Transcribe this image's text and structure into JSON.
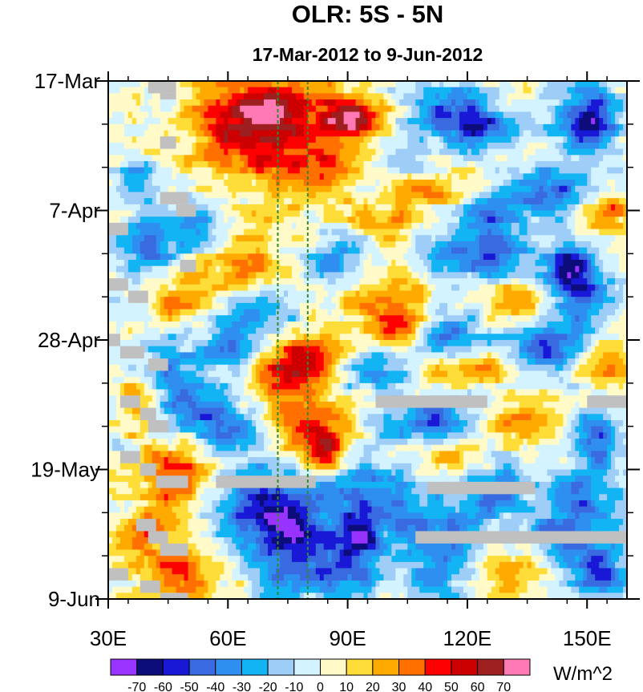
{
  "chart_data": {
    "type": "heatmap",
    "title": "OLR: 5S - 5N",
    "subtitle": "17-Mar-2012 to 9-Jun-2012",
    "xlabel": "",
    "ylabel": "",
    "x_range": [
      30,
      160
    ],
    "x_ticks": [
      {
        "value": 30,
        "label": "30E"
      },
      {
        "value": 60,
        "label": "60E"
      },
      {
        "value": 90,
        "label": "90E"
      },
      {
        "value": 120,
        "label": "120E"
      },
      {
        "value": 150,
        "label": "150E"
      }
    ],
    "y_range_days": [
      0,
      84
    ],
    "y_axis_direction": "time increases downward",
    "y_ticks": [
      {
        "value": 0,
        "label": "17-Mar"
      },
      {
        "value": 21,
        "label": "7-Apr"
      },
      {
        "value": 42,
        "label": "28-Apr"
      },
      {
        "value": 63,
        "label": "19-May"
      },
      {
        "value": 84,
        "label": "9-Jun"
      }
    ],
    "reference_lines_lon": [
      72.5,
      80
    ],
    "reference_line_color": "#2e8b2e",
    "colorbar": {
      "unit": "W/m^2",
      "levels": [
        -70,
        -60,
        -50,
        -40,
        -30,
        -20,
        -10,
        0,
        10,
        20,
        30,
        40,
        50,
        60,
        70
      ],
      "labels": [
        "-70",
        "-60",
        "-50",
        "-40",
        "-30",
        "-20",
        "-10",
        "0",
        "10",
        "20",
        "30",
        "40",
        "50",
        "60",
        "70"
      ],
      "colors": [
        "#9933ff",
        "#0c0c7a",
        "#1818d6",
        "#3a6ae0",
        "#2f8ff0",
        "#12b4f4",
        "#9ecdf7",
        "#d2f3ff",
        "#fffac8",
        "#ffdd38",
        "#ffaa00",
        "#ff7000",
        "#ff0000",
        "#cc0000",
        "#9e1f20",
        "#ff7ab4"
      ]
    },
    "missing_color": "#c0c0c0",
    "features": [
      {
        "lon": 72,
        "day": 4,
        "anomaly": 42,
        "spread_lon": 18,
        "spread_day": 6
      },
      {
        "lon": 92,
        "day": 6,
        "anomaly": 62,
        "spread_lon": 6,
        "spread_day": 3
      },
      {
        "lon": 65,
        "day": 9,
        "anomaly": 36,
        "spread_lon": 16,
        "spread_day": 8
      },
      {
        "lon": 83,
        "day": 13,
        "anomaly": 28,
        "spread_lon": 14,
        "spread_day": 6
      },
      {
        "lon": 117,
        "day": 5,
        "anomaly": -45,
        "spread_lon": 9,
        "spread_day": 4
      },
      {
        "lon": 150,
        "day": 6,
        "anomaly": -62,
        "spread_lon": 8,
        "spread_day": 5
      },
      {
        "lon": 125,
        "day": 8,
        "anomaly": -40,
        "spread_lon": 10,
        "spread_day": 3
      },
      {
        "lon": 105,
        "day": 14,
        "anomaly": -30,
        "spread_lon": 9,
        "spread_day": 3
      },
      {
        "lon": 37,
        "day": 16,
        "anomaly": -32,
        "spread_lon": 5,
        "spread_day": 3
      },
      {
        "lon": 110,
        "day": 17,
        "anomaly": 34,
        "spread_lon": 10,
        "spread_day": 3
      },
      {
        "lon": 140,
        "day": 18,
        "anomaly": -48,
        "spread_lon": 11,
        "spread_day": 4
      },
      {
        "lon": 155,
        "day": 21,
        "anomaly": 42,
        "spread_lon": 6,
        "spread_day": 3
      },
      {
        "lon": 125,
        "day": 22,
        "anomaly": -35,
        "spread_lon": 8,
        "spread_day": 3
      },
      {
        "lon": 100,
        "day": 23,
        "anomaly": 28,
        "spread_lon": 9,
        "spread_day": 3
      },
      {
        "lon": 52,
        "day": 24,
        "anomaly": -35,
        "spread_lon": 8,
        "spread_day": 4
      },
      {
        "lon": 40,
        "day": 27,
        "anomaly": -38,
        "spread_lon": 7,
        "spread_day": 4
      },
      {
        "lon": 64,
        "day": 30,
        "anomaly": 30,
        "spread_lon": 11,
        "spread_day": 6
      },
      {
        "lon": 88,
        "day": 29,
        "anomaly": -32,
        "spread_lon": 9,
        "spread_day": 4
      },
      {
        "lon": 122,
        "day": 28,
        "anomaly": -50,
        "spread_lon": 12,
        "spread_day": 4
      },
      {
        "lon": 146,
        "day": 30,
        "anomaly": -48,
        "spread_lon": 8,
        "spread_day": 4
      },
      {
        "lon": 100,
        "day": 35,
        "anomaly": 30,
        "spread_lon": 12,
        "spread_day": 5
      },
      {
        "lon": 133,
        "day": 36,
        "anomaly": 32,
        "spread_lon": 10,
        "spread_day": 3
      },
      {
        "lon": 148,
        "day": 35,
        "anomaly": -42,
        "spread_lon": 8,
        "spread_day": 4
      },
      {
        "lon": 68,
        "day": 37,
        "anomaly": -28,
        "spread_lon": 10,
        "spread_day": 4
      },
      {
        "lon": 47,
        "day": 35,
        "anomaly": 28,
        "spread_lon": 7,
        "spread_day": 4
      },
      {
        "lon": 103,
        "day": 40,
        "anomaly": 52,
        "spread_lon": 6,
        "spread_day": 3
      },
      {
        "lon": 115,
        "day": 41,
        "anomaly": -40,
        "spread_lon": 9,
        "spread_day": 4
      },
      {
        "lon": 82,
        "day": 45,
        "anomaly": 50,
        "spread_lon": 9,
        "spread_day": 4
      },
      {
        "lon": 73,
        "day": 48,
        "anomaly": 44,
        "spread_lon": 8,
        "spread_day": 4
      },
      {
        "lon": 60,
        "day": 43,
        "anomaly": -32,
        "spread_lon": 8,
        "spread_day": 4
      },
      {
        "lon": 45,
        "day": 46,
        "anomaly": -30,
        "spread_lon": 7,
        "spread_day": 4
      },
      {
        "lon": 140,
        "day": 43,
        "anomaly": -45,
        "spread_lon": 10,
        "spread_day": 4
      },
      {
        "lon": 155,
        "day": 45,
        "anomaly": 32,
        "spread_lon": 6,
        "spread_day": 4
      },
      {
        "lon": 95,
        "day": 47,
        "anomaly": -30,
        "spread_lon": 9,
        "spread_day": 3
      },
      {
        "lon": 120,
        "day": 47,
        "anomaly": 30,
        "spread_lon": 9,
        "spread_day": 3
      },
      {
        "lon": 50,
        "day": 53,
        "anomaly": -44,
        "spread_lon": 9,
        "spread_day": 4
      },
      {
        "lon": 38,
        "day": 52,
        "anomaly": 28,
        "spread_lon": 6,
        "spread_day": 4
      },
      {
        "lon": 80,
        "day": 56,
        "anomaly": 38,
        "spread_lon": 9,
        "spread_day": 4
      },
      {
        "lon": 84,
        "day": 60,
        "anomaly": 50,
        "spread_lon": 5,
        "spread_day": 3
      },
      {
        "lon": 110,
        "day": 55,
        "anomaly": -45,
        "spread_lon": 11,
        "spread_day": 4
      },
      {
        "lon": 136,
        "day": 55,
        "anomaly": 28,
        "spread_lon": 11,
        "spread_day": 4
      },
      {
        "lon": 152,
        "day": 58,
        "anomaly": -42,
        "spread_lon": 8,
        "spread_day": 5
      },
      {
        "lon": 62,
        "day": 57,
        "anomaly": -35,
        "spread_lon": 9,
        "spread_day": 4
      },
      {
        "lon": 115,
        "day": 61,
        "anomaly": 28,
        "spread_lon": 10,
        "spread_day": 3
      },
      {
        "lon": 46,
        "day": 64,
        "anomaly": 38,
        "spread_lon": 9,
        "spread_day": 6
      },
      {
        "lon": 70,
        "day": 68,
        "anomaly": -48,
        "spread_lon": 12,
        "spread_day": 5
      },
      {
        "lon": 95,
        "day": 67,
        "anomaly": -42,
        "spread_lon": 12,
        "spread_day": 5
      },
      {
        "lon": 126,
        "day": 66,
        "anomaly": -40,
        "spread_lon": 10,
        "spread_day": 4
      },
      {
        "lon": 150,
        "day": 68,
        "anomaly": -35,
        "spread_lon": 10,
        "spread_day": 5
      },
      {
        "lon": 75,
        "day": 74,
        "anomaly": -58,
        "spread_lon": 12,
        "spread_day": 5
      },
      {
        "lon": 93,
        "day": 74,
        "anomaly": -62,
        "spread_lon": 5,
        "spread_day": 3
      },
      {
        "lon": 112,
        "day": 72,
        "anomaly": -38,
        "spread_lon": 12,
        "spread_day": 4
      },
      {
        "lon": 145,
        "day": 74,
        "anomaly": -42,
        "spread_lon": 10,
        "spread_day": 4
      },
      {
        "lon": 38,
        "day": 74,
        "anomaly": 32,
        "spread_lon": 6,
        "spread_day": 4
      },
      {
        "lon": 48,
        "day": 80,
        "anomaly": 38,
        "spread_lon": 10,
        "spread_day": 5
      },
      {
        "lon": 85,
        "day": 80,
        "anomaly": -42,
        "spread_lon": 14,
        "spread_day": 4
      },
      {
        "lon": 115,
        "day": 79,
        "anomaly": -35,
        "spread_lon": 10,
        "spread_day": 4
      },
      {
        "lon": 130,
        "day": 80,
        "anomaly": 28,
        "spread_lon": 9,
        "spread_day": 4
      },
      {
        "lon": 153,
        "day": 80,
        "anomaly": -48,
        "spread_lon": 7,
        "spread_day": 4
      }
    ],
    "missing_segments": [
      {
        "lon0": 40,
        "lon1": 47,
        "day0": 0,
        "day1": 2
      },
      {
        "lon0": 43,
        "lon1": 47,
        "day0": 2,
        "day1": 3
      },
      {
        "lon0": 43,
        "lon1": 47,
        "day0": 9,
        "day1": 11
      },
      {
        "lon0": 43,
        "lon1": 50,
        "day0": 18,
        "day1": 20
      },
      {
        "lon0": 47,
        "lon1": 52,
        "day0": 20,
        "day1": 22
      },
      {
        "lon0": 30,
        "lon1": 35,
        "day0": 23,
        "day1": 25
      },
      {
        "lon0": 48,
        "lon1": 52,
        "day0": 29,
        "day1": 31
      },
      {
        "lon0": 30,
        "lon1": 35,
        "day0": 32,
        "day1": 34
      },
      {
        "lon0": 35,
        "lon1": 40,
        "day0": 34,
        "day1": 36
      },
      {
        "lon0": 30,
        "lon1": 33,
        "day0": 41,
        "day1": 43
      },
      {
        "lon0": 33,
        "lon1": 39,
        "day0": 43,
        "day1": 45
      },
      {
        "lon0": 40,
        "lon1": 45,
        "day0": 45,
        "day1": 47
      },
      {
        "lon0": 33,
        "lon1": 38,
        "day0": 51,
        "day1": 53
      },
      {
        "lon0": 38,
        "lon1": 42,
        "day0": 53,
        "day1": 55
      },
      {
        "lon0": 40,
        "lon1": 45,
        "day0": 55,
        "day1": 57
      },
      {
        "lon0": 33,
        "lon1": 38,
        "day0": 60,
        "day1": 62
      },
      {
        "lon0": 38,
        "lon1": 42,
        "day0": 62,
        "day1": 64
      },
      {
        "lon0": 42,
        "lon1": 50,
        "day0": 64,
        "day1": 66
      },
      {
        "lon0": 37,
        "lon1": 42,
        "day0": 71,
        "day1": 73
      },
      {
        "lon0": 40,
        "lon1": 45,
        "day0": 73,
        "day1": 75
      },
      {
        "lon0": 43,
        "lon1": 50,
        "day0": 75,
        "day1": 77
      },
      {
        "lon0": 30,
        "lon1": 35,
        "day0": 79,
        "day1": 81
      },
      {
        "lon0": 38,
        "lon1": 43,
        "day0": 81,
        "day1": 83
      },
      {
        "lon0": 43,
        "lon1": 50,
        "day0": 83,
        "day1": 84
      },
      {
        "lon0": 97,
        "lon1": 125,
        "day0": 51,
        "day1": 53
      },
      {
        "lon0": 150,
        "lon1": 160,
        "day0": 51,
        "day1": 53
      },
      {
        "lon0": 57,
        "lon1": 82,
        "day0": 64,
        "day1": 66
      },
      {
        "lon0": 110,
        "lon1": 137,
        "day0": 65,
        "day1": 67
      },
      {
        "lon0": 107,
        "lon1": 160,
        "day0": 73,
        "day1": 75
      }
    ]
  }
}
